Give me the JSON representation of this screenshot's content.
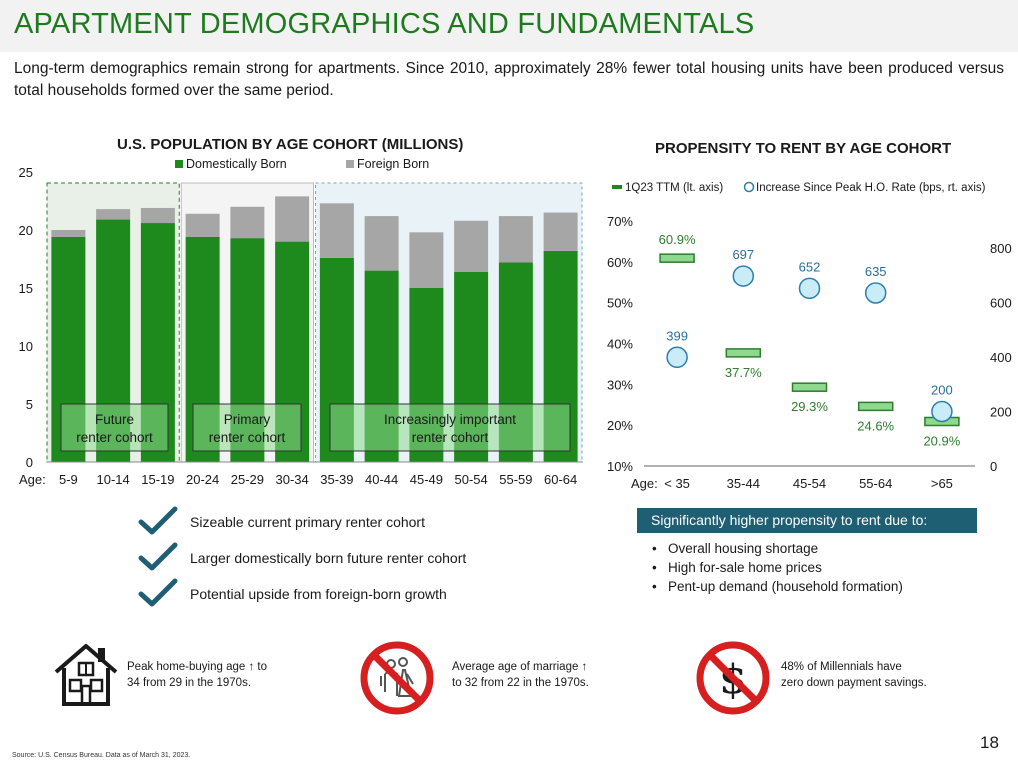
{
  "header": {
    "title": "APARTMENT DEMOGRAPHICS AND FUNDAMENTALS",
    "subtitle": "Long-term demographics remain strong for apartments. Since 2010, approximately 28% fewer total housing units have been produced versus total households formed over the same period."
  },
  "colors": {
    "domestic": "#1e8a1e",
    "foreign": "#a6a6a6",
    "bar_light": "#8ed98e",
    "bar_outline": "#2e7d2e",
    "marker_fill": "#c9ecf7",
    "marker_stroke": "#2a7fb0",
    "title_green": "#1e7a1e",
    "callout": "#1f5f73"
  },
  "chart_data": [
    {
      "type": "bar",
      "stacked": true,
      "title": "U.S. POPULATION BY AGE COHORT (MILLIONS)",
      "axis_prefix": "Age:",
      "categories": [
        "5-9",
        "10-14",
        "15-19",
        "20-24",
        "25-29",
        "30-34",
        "35-39",
        "40-44",
        "45-49",
        "50-54",
        "55-59",
        "60-64"
      ],
      "series": [
        {
          "name": "Domestically Born",
          "values": [
            19.4,
            20.9,
            20.6,
            19.4,
            19.3,
            19.0,
            17.6,
            16.5,
            15.0,
            16.4,
            17.2,
            18.2
          ]
        },
        {
          "name": "Foreign Born",
          "values": [
            0.6,
            0.9,
            1.3,
            2.0,
            2.7,
            3.9,
            4.7,
            4.7,
            4.8,
            4.4,
            4.0,
            3.3
          ]
        }
      ],
      "ylim": [
        0,
        25
      ],
      "yticks": [
        "0",
        "5",
        "10",
        "15",
        "20",
        "25"
      ],
      "cohort_labels": [
        {
          "line1": "Future",
          "line2": "renter cohort"
        },
        {
          "line1": "Primary",
          "line2": "renter cohort"
        },
        {
          "line1": "Increasingly important",
          "line2": "renter cohort"
        }
      ]
    },
    {
      "type": "combo",
      "title": "PROPENSITY TO RENT BY AGE COHORT",
      "axis_prefix": "Age:",
      "categories": [
        "< 35",
        "35-44",
        "45-54",
        "55-64",
        ">65"
      ],
      "series": [
        {
          "name": "1Q23 TTM (lt. axis)",
          "axis": "left",
          "values": [
            60.9,
            37.7,
            29.3,
            24.6,
            20.9
          ],
          "labels": [
            "60.9%",
            "37.7%",
            "29.3%",
            "24.6%",
            "20.9%"
          ]
        },
        {
          "name": "Increase Since Peak H.O. Rate (bps, rt. axis)",
          "axis": "right",
          "values": [
            399,
            697,
            652,
            635,
            200
          ],
          "labels": [
            "399",
            "697",
            "652",
            "635",
            "200"
          ]
        }
      ],
      "ylim_left": [
        10,
        70
      ],
      "yticks_left": [
        "10%",
        "20%",
        "30%",
        "40%",
        "50%",
        "60%",
        "70%"
      ],
      "ylim_right": [
        0,
        800
      ],
      "yticks_right": [
        "0",
        "200",
        "400",
        "600",
        "800"
      ]
    }
  ],
  "checklist": [
    "Sizeable current primary renter cohort",
    "Larger domestically born future renter cohort",
    "Potential upside from foreign-born growth"
  ],
  "callout": {
    "title": "Significantly higher propensity to rent due to:",
    "bullets": [
      "Overall housing shortage",
      "High for-sale home prices",
      "Pent-up demand (household formation)"
    ]
  },
  "facts": [
    {
      "line1": "Peak home-buying age ↑ to",
      "line2": "34 from 29 in the 1970s."
    },
    {
      "line1": "Average age of marriage ↑",
      "line2": "to 32 from 22 in the 1970s."
    },
    {
      "line1": "48% of Millennials have",
      "line2": "zero down payment savings."
    }
  ],
  "source": "Source:  U.S. Census Bureau. Data as of March 31, 2023.",
  "page_number": "18"
}
